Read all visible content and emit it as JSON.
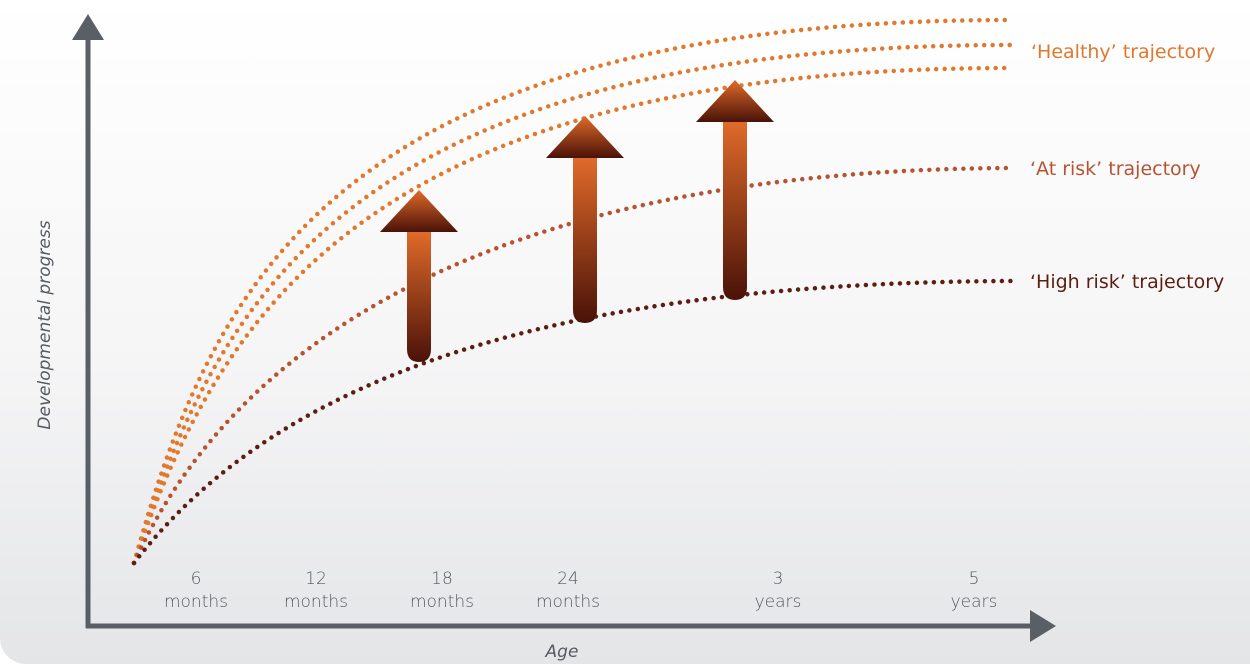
{
  "axes": {
    "y_label": "Developmental progress",
    "x_label": "Age"
  },
  "ticks": [
    {
      "num": "6",
      "unit": "months"
    },
    {
      "num": "12",
      "unit": "months"
    },
    {
      "num": "18",
      "unit": "months"
    },
    {
      "num": "24",
      "unit": "months"
    },
    {
      "num": "3",
      "unit": "years"
    },
    {
      "num": "5",
      "unit": "years"
    }
  ],
  "trajectories": [
    {
      "label": "‘Healthy’ trajectory",
      "color": "#e0782e"
    },
    {
      "label": "‘At risk’ trajectory",
      "color": "#b55332"
    },
    {
      "label": "‘High risk’ trajectory",
      "color": "#5c1e12"
    }
  ],
  "colors": {
    "axis": "#5a5f66",
    "arrow_top": "#e06a2a",
    "arrow_bottom": "#4a1208"
  }
}
